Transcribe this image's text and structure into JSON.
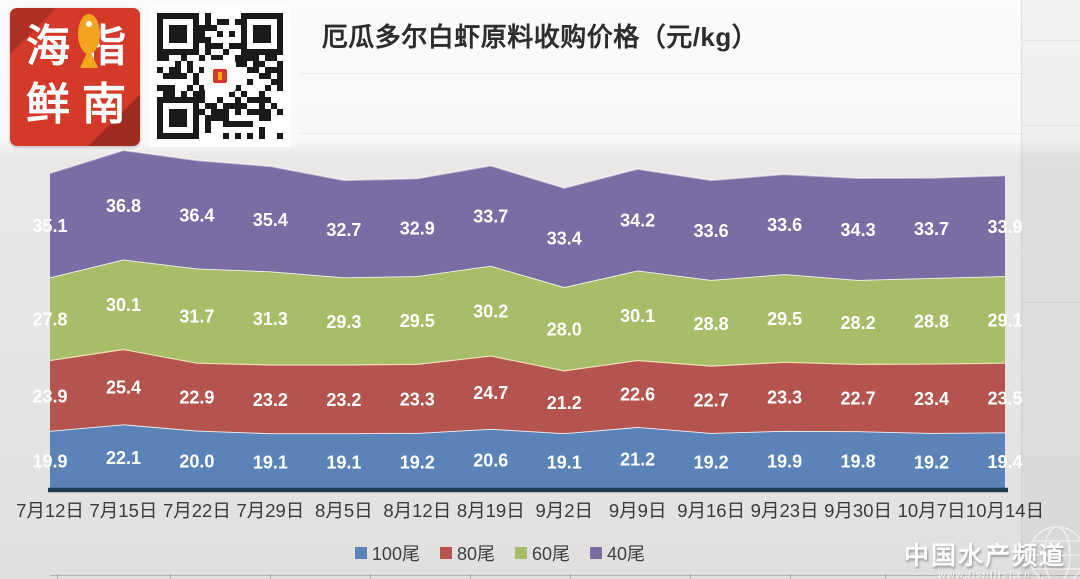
{
  "header": {
    "title": "厄瓜多尔白虾原料收购价格（元/kg）"
  },
  "logo": {
    "line1": "海鲜",
    "line2": "指南",
    "bg_color": "#d43a2a",
    "fish_color": "#f2a41e"
  },
  "icons": {
    "fish": "fish-icon",
    "globe": "globe-icon",
    "qr": "qr-code"
  },
  "watermark": {
    "title": "中国水产频道",
    "url": "www.fishfirst.cn"
  },
  "chart_data": {
    "type": "area",
    "stacked": true,
    "title": "厄瓜多尔白虾原料收购价格（元/kg）",
    "categories": [
      "7月12日",
      "7月15日",
      "7月22日",
      "7月29日",
      "8月5日",
      "8月12日",
      "8月19日",
      "9月2日",
      "9月9日",
      "9月16日",
      "9月23日",
      "9月30日",
      "10月7日",
      "10月14日"
    ],
    "series": [
      {
        "name": "100尾",
        "color": "#5b83b7",
        "values": [
          19.9,
          22.1,
          20.0,
          19.1,
          19.1,
          19.2,
          20.6,
          19.1,
          21.2,
          19.2,
          19.9,
          19.8,
          19.2,
          19.4
        ]
      },
      {
        "name": "80尾",
        "color": "#b5534f",
        "values": [
          23.9,
          25.4,
          22.9,
          23.2,
          23.2,
          23.3,
          24.7,
          21.2,
          22.6,
          22.7,
          23.3,
          22.7,
          23.4,
          23.5
        ]
      },
      {
        "name": "60尾",
        "color": "#a7bd68",
        "values": [
          27.8,
          30.1,
          31.7,
          31.3,
          29.3,
          29.5,
          30.2,
          28.0,
          30.1,
          28.8,
          29.5,
          28.2,
          28.8,
          29.1
        ]
      },
      {
        "name": "40尾",
        "color": "#7b6ca4",
        "values": [
          35.1,
          36.8,
          36.4,
          35.4,
          32.7,
          32.9,
          33.7,
          33.4,
          34.2,
          33.6,
          33.6,
          34.3,
          33.7,
          33.9
        ]
      }
    ],
    "stack_order_bottom_to_top": [
      "100尾",
      "80尾",
      "60尾",
      "40尾"
    ],
    "value_labels": true,
    "grid": false,
    "legend_position": "bottom",
    "x_axis_color": "#23374a",
    "ylim": [
      0,
      115
    ]
  }
}
